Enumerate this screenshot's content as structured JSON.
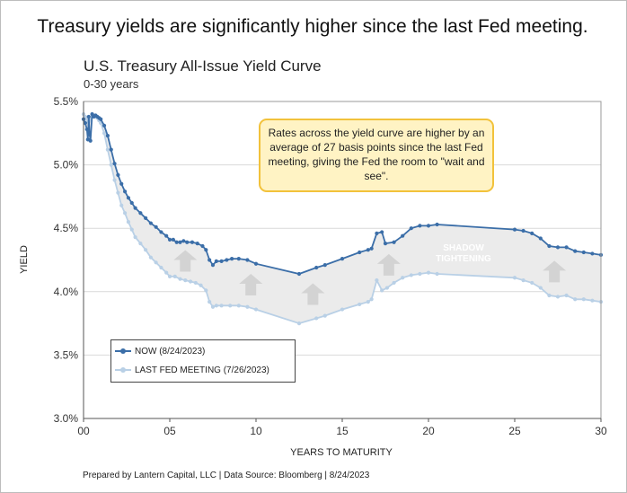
{
  "headline": "Treasury yields are significantly higher since the last Fed meeting.",
  "footer": "Prepared by Lantern Capital, LLC | Data Source: Bloomberg | 8/24/2023",
  "callout": "Rates across the yield curve are higher by an average of 27 basis points since the last Fed meeting, giving the Fed the room to \"wait and see\".",
  "colors": {
    "now": "#3b6ea8",
    "last": "#b9d0e6",
    "shade": "#ebebeb",
    "arrow": "#d3d3d3"
  },
  "chart_data": {
    "type": "line",
    "title": "U.S. Treasury All-Issue Yield Curve",
    "subtitle": "0-30 years",
    "xlabel": "YEARS TO MATURITY",
    "ylabel": "YIELD",
    "xlim": [
      0,
      30
    ],
    "ylim": [
      3.0,
      5.5
    ],
    "x_ticks": [
      0,
      5,
      10,
      15,
      20,
      25,
      30
    ],
    "x_tick_labels": [
      "00",
      "05",
      "10",
      "15",
      "20",
      "25",
      "30"
    ],
    "y_ticks": [
      3.0,
      3.5,
      4.0,
      4.5,
      5.0,
      5.5
    ],
    "y_tick_labels": [
      "3.0%",
      "3.5%",
      "4.0%",
      "4.5%",
      "5.0%",
      "5.5%"
    ],
    "shaded_region_label": [
      "SHADOW",
      "TIGHTENING"
    ],
    "series": [
      {
        "name": "NOW (8/24/2023)",
        "points": [
          [
            0.0,
            5.36
          ],
          [
            0.1,
            5.33
          ],
          [
            0.2,
            5.28
          ],
          [
            0.25,
            5.2
          ],
          [
            0.3,
            5.38
          ],
          [
            0.35,
            5.24
          ],
          [
            0.4,
            5.19
          ],
          [
            0.5,
            5.4
          ],
          [
            0.6,
            5.38
          ],
          [
            0.7,
            5.39
          ],
          [
            0.8,
            5.38
          ],
          [
            0.9,
            5.37
          ],
          [
            1.0,
            5.36
          ],
          [
            1.2,
            5.31
          ],
          [
            1.4,
            5.23
          ],
          [
            1.6,
            5.12
          ],
          [
            1.8,
            5.01
          ],
          [
            2.0,
            4.92
          ],
          [
            2.2,
            4.85
          ],
          [
            2.4,
            4.79
          ],
          [
            2.6,
            4.74
          ],
          [
            2.8,
            4.7
          ],
          [
            3.0,
            4.66
          ],
          [
            3.3,
            4.62
          ],
          [
            3.6,
            4.58
          ],
          [
            3.9,
            4.54
          ],
          [
            4.2,
            4.51
          ],
          [
            4.5,
            4.47
          ],
          [
            4.8,
            4.44
          ],
          [
            5.0,
            4.41
          ],
          [
            5.2,
            4.41
          ],
          [
            5.4,
            4.39
          ],
          [
            5.6,
            4.39
          ],
          [
            5.8,
            4.4
          ],
          [
            6.0,
            4.39
          ],
          [
            6.3,
            4.39
          ],
          [
            6.6,
            4.38
          ],
          [
            6.9,
            4.36
          ],
          [
            7.1,
            4.33
          ],
          [
            7.3,
            4.25
          ],
          [
            7.5,
            4.21
          ],
          [
            7.7,
            4.24
          ],
          [
            8.0,
            4.24
          ],
          [
            8.3,
            4.25
          ],
          [
            8.6,
            4.26
          ],
          [
            9.0,
            4.26
          ],
          [
            9.5,
            4.25
          ],
          [
            10.0,
            4.22
          ],
          [
            12.5,
            4.14
          ],
          [
            13.5,
            4.19
          ],
          [
            14.0,
            4.21
          ],
          [
            15.0,
            4.26
          ],
          [
            16.0,
            4.31
          ],
          [
            16.5,
            4.33
          ],
          [
            16.7,
            4.34
          ],
          [
            17.0,
            4.46
          ],
          [
            17.3,
            4.47
          ],
          [
            17.5,
            4.38
          ],
          [
            18.0,
            4.39
          ],
          [
            18.5,
            4.44
          ],
          [
            19.0,
            4.5
          ],
          [
            19.5,
            4.52
          ],
          [
            20.0,
            4.52
          ],
          [
            20.5,
            4.53
          ],
          [
            25.0,
            4.49
          ],
          [
            25.5,
            4.48
          ],
          [
            26.0,
            4.46
          ],
          [
            26.5,
            4.42
          ],
          [
            27.0,
            4.36
          ],
          [
            27.5,
            4.35
          ],
          [
            28.0,
            4.35
          ],
          [
            28.5,
            4.32
          ],
          [
            29.0,
            4.31
          ],
          [
            29.5,
            4.3
          ],
          [
            30.0,
            4.29
          ]
        ]
      },
      {
        "name": "LAST FED MEETING (7/26/2023)",
        "points": [
          [
            0.0,
            5.4
          ],
          [
            0.1,
            5.38
          ],
          [
            0.2,
            5.36
          ],
          [
            0.3,
            5.34
          ],
          [
            0.4,
            5.36
          ],
          [
            0.5,
            5.38
          ],
          [
            0.6,
            5.39
          ],
          [
            0.7,
            5.38
          ],
          [
            0.8,
            5.37
          ],
          [
            0.9,
            5.35
          ],
          [
            1.0,
            5.33
          ],
          [
            1.2,
            5.25
          ],
          [
            1.4,
            5.12
          ],
          [
            1.6,
            5.0
          ],
          [
            1.8,
            4.88
          ],
          [
            2.0,
            4.78
          ],
          [
            2.2,
            4.68
          ],
          [
            2.4,
            4.62
          ],
          [
            2.6,
            4.55
          ],
          [
            2.8,
            4.49
          ],
          [
            3.0,
            4.43
          ],
          [
            3.3,
            4.38
          ],
          [
            3.6,
            4.33
          ],
          [
            3.9,
            4.27
          ],
          [
            4.2,
            4.23
          ],
          [
            4.5,
            4.19
          ],
          [
            4.8,
            4.15
          ],
          [
            5.0,
            4.12
          ],
          [
            5.3,
            4.12
          ],
          [
            5.6,
            4.1
          ],
          [
            5.9,
            4.09
          ],
          [
            6.2,
            4.08
          ],
          [
            6.5,
            4.07
          ],
          [
            6.8,
            4.05
          ],
          [
            7.1,
            4.01
          ],
          [
            7.3,
            3.92
          ],
          [
            7.5,
            3.88
          ],
          [
            7.7,
            3.89
          ],
          [
            8.0,
            3.89
          ],
          [
            8.5,
            3.89
          ],
          [
            9.0,
            3.89
          ],
          [
            9.5,
            3.88
          ],
          [
            10.0,
            3.86
          ],
          [
            12.5,
            3.75
          ],
          [
            13.5,
            3.79
          ],
          [
            14.0,
            3.81
          ],
          [
            15.0,
            3.86
          ],
          [
            16.0,
            3.9
          ],
          [
            16.5,
            3.92
          ],
          [
            16.7,
            3.94
          ],
          [
            17.0,
            4.09
          ],
          [
            17.3,
            4.01
          ],
          [
            17.6,
            4.03
          ],
          [
            18.0,
            4.07
          ],
          [
            18.5,
            4.11
          ],
          [
            19.0,
            4.13
          ],
          [
            19.5,
            4.14
          ],
          [
            20.0,
            4.15
          ],
          [
            20.5,
            4.14
          ],
          [
            25.0,
            4.11
          ],
          [
            25.5,
            4.09
          ],
          [
            26.0,
            4.07
          ],
          [
            26.5,
            4.03
          ],
          [
            27.0,
            3.97
          ],
          [
            27.5,
            3.96
          ],
          [
            28.0,
            3.97
          ],
          [
            28.5,
            3.94
          ],
          [
            29.0,
            3.94
          ],
          [
            29.5,
            3.93
          ],
          [
            30.0,
            3.92
          ]
        ]
      }
    ],
    "arrows_at_years": [
      5.9,
      9.7,
      13.3,
      17.7,
      27.3
    ]
  }
}
